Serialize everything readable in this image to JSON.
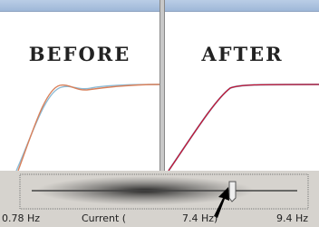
{
  "panels": [
    {
      "title": "BEFORE"
    },
    {
      "title": "AFTER"
    }
  ],
  "slider": {
    "min_label": "0.78 Hz",
    "current_prefix": "Current (",
    "current_label": "7.4 Hz)",
    "max_label": "9.4 Hz"
  }
}
